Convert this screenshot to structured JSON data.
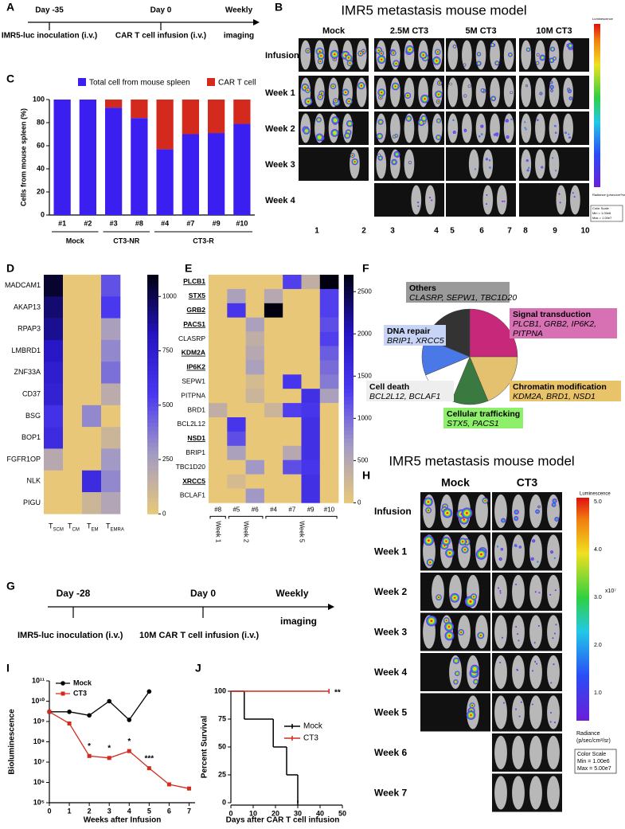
{
  "panel_labels": [
    "A",
    "B",
    "C",
    "D",
    "E",
    "F",
    "G",
    "H",
    "I",
    "J"
  ],
  "timeline_a": {
    "start": "Day -35",
    "mid": "Day 0",
    "end": "Weekly",
    "end2": "imaging",
    "start_event": "IMR5-luc inoculation (i.v.)",
    "mid_event": "CAR T cell infusion (i.v.)"
  },
  "timeline_g": {
    "start": "Day -28",
    "mid": "Day 0",
    "end": "Weekly",
    "end2": "imaging",
    "start_event": "IMR5-luc inoculation (i.v.)",
    "mid_event": "10M CAR T cell infusion (i.v.)"
  },
  "imaging_b": {
    "title": "IMR5 metastasis mouse model",
    "columns": [
      "Mock",
      "2.5M CT3",
      "5M CT3",
      "10M CT3"
    ],
    "rows": [
      "Infusion",
      "Week 1",
      "Week 2",
      "Week 3",
      "Week 4"
    ],
    "mouse_numbers": [
      "1",
      "2",
      "3",
      "4",
      "5",
      "6",
      "7",
      "8",
      "9",
      "10"
    ],
    "colorbar": [
      "Luminescence",
      "Radiance (p/sec/cm²/sr)",
      "Color Scale",
      "Min = 1.00e6",
      "Max = 1.00e7"
    ]
  },
  "imaging_h": {
    "title": "IMR5 metastasis mouse model",
    "columns": [
      "Mock",
      "CT3"
    ],
    "rows": [
      "Infusion",
      "Week 1",
      "Week 2",
      "Week 3",
      "Week 4",
      "Week 5",
      "Week 6",
      "Week 7"
    ],
    "colorbar_label": "Luminescence",
    "colorbar_ticks": [
      "5.0",
      "4.0",
      "3.0",
      "2.0",
      "1.0"
    ],
    "colorbar_unit": "x10⁷",
    "radiance": "Radiance",
    "radiance_unit": "(p/sec/cm²/sr)",
    "color_scale": [
      "Color Scale",
      "Min = 1.00e6",
      "Max = 5.00e7"
    ]
  },
  "chart_data": [
    {
      "type": "stacked-bar",
      "ylabel": "Cells from mouse spleen (%)",
      "categories": [
        "#1",
        "#2",
        "#3",
        "#8",
        "#4",
        "#7",
        "#9",
        "#10"
      ],
      "series": [
        {
          "name": "Total cell from mouse spleen",
          "color": "#3b1ff0",
          "values": [
            100,
            100,
            93,
            84,
            57,
            70,
            71,
            79
          ]
        },
        {
          "name": "CAR T cell",
          "color": "#d42a1e",
          "values": [
            0,
            0,
            7,
            16,
            43,
            30,
            29,
            21
          ]
        }
      ],
      "groups": [
        {
          "name": "Mock",
          "categories": [
            "#1",
            "#2"
          ]
        },
        {
          "name": "CT3-NR",
          "categories": [
            "#3",
            "#8"
          ]
        },
        {
          "name": "CT3-R",
          "categories": [
            "#4",
            "#7",
            "#9",
            "#10"
          ]
        }
      ],
      "ylim": [
        0,
        100
      ],
      "yticks": [
        0,
        20,
        40,
        60,
        80,
        100
      ]
    },
    {
      "type": "heatmap",
      "rows": [
        "MADCAM1",
        "AKAP13",
        "RPAP3",
        "LMBRD1",
        "ZNF33A",
        "CD37",
        "BSG",
        "BOP1",
        "FGFR1OP",
        "NLK",
        "PIGU"
      ],
      "columns": [
        {
          "base": "T",
          "subscript": "SCM"
        },
        {
          "base": "T",
          "subscript": "CM"
        },
        {
          "base": "T",
          "subscript": "EM"
        },
        {
          "base": "T",
          "subscript": "EMRA"
        }
      ],
      "values": [
        [
          1050,
          0,
          0,
          480
        ],
        [
          950,
          0,
          0,
          550
        ],
        [
          900,
          0,
          0,
          250
        ],
        [
          800,
          0,
          0,
          330
        ],
        [
          750,
          0,
          0,
          400
        ],
        [
          720,
          0,
          0,
          180
        ],
        [
          600,
          0,
          330,
          0
        ],
        [
          650,
          0,
          0,
          120
        ],
        [
          200,
          0,
          0,
          280
        ],
        [
          0,
          0,
          650,
          330
        ],
        [
          0,
          0,
          120,
          220
        ]
      ],
      "clim": [
        0,
        1100
      ],
      "cticks": [
        0,
        250,
        500,
        750,
        1000
      ],
      "colormap": [
        "#e8c878",
        "#a49cc4",
        "#4a38f0",
        "#2414c0",
        "#000010"
      ]
    },
    {
      "type": "heatmap",
      "rows": [
        "PLCB1",
        "STX5",
        "GRB2",
        "PACS1",
        "CLASRP",
        "KDM2A",
        "IP6K2",
        "SEPW1",
        "PITPNA",
        "BRD1",
        "BCL2L12",
        "NSD1",
        "BRIP1",
        "TBC1D20",
        "XRCC5",
        "BCLAF1"
      ],
      "highlighted": [
        true,
        true,
        true,
        true,
        false,
        true,
        true,
        false,
        false,
        false,
        false,
        true,
        false,
        false,
        true,
        false
      ],
      "columns": [
        "#8",
        "#5",
        "#6",
        "#4",
        "#7",
        "#9",
        "#10"
      ],
      "values": [
        [
          0,
          0,
          0,
          0,
          1300,
          400,
          2700
        ],
        [
          0,
          600,
          0,
          500,
          0,
          0,
          1300
        ],
        [
          0,
          1400,
          0,
          2700,
          0,
          0,
          1300
        ],
        [
          0,
          0,
          600,
          0,
          0,
          0,
          1200
        ],
        [
          0,
          0,
          400,
          0,
          0,
          0,
          1300
        ],
        [
          0,
          0,
          500,
          0,
          0,
          0,
          1100
        ],
        [
          0,
          0,
          600,
          0,
          0,
          0,
          1000
        ],
        [
          0,
          0,
          200,
          0,
          1400,
          0,
          900
        ],
        [
          0,
          0,
          300,
          0,
          0,
          1500,
          600
        ],
        [
          400,
          0,
          0,
          300,
          1300,
          1400,
          0
        ],
        [
          0,
          1400,
          0,
          0,
          0,
          1500,
          0
        ],
        [
          0,
          1200,
          0,
          0,
          0,
          1500,
          0
        ],
        [
          0,
          600,
          0,
          0,
          500,
          1500,
          0
        ],
        [
          0,
          0,
          700,
          0,
          1200,
          1400,
          0
        ],
        [
          0,
          200,
          0,
          0,
          0,
          1500,
          0
        ],
        [
          0,
          0,
          700,
          0,
          0,
          1500,
          0
        ]
      ],
      "groups": [
        {
          "name": "Week 1",
          "categories": [
            "#8"
          ]
        },
        {
          "name": "Week 2",
          "categories": [
            "#5",
            "#6"
          ]
        },
        {
          "name": "Week 5",
          "categories": [
            "#4",
            "#7",
            "#9",
            "#10"
          ]
        }
      ],
      "clim": [
        0,
        2700
      ],
      "cticks": [
        0,
        500,
        1000,
        1500,
        2000,
        2500
      ],
      "colormap": [
        "#e8c878",
        "#a49cc4",
        "#4a38f0",
        "#2414c0",
        "#000010"
      ]
    },
    {
      "type": "pie",
      "categories": [
        "Signal transduction",
        "Chromatin modification",
        "Cellular trafficking",
        "Cell death",
        "DNA repair",
        "Others"
      ],
      "details": [
        [
          "PLCB1, GRB2, IP6K2,",
          "PITPNA"
        ],
        [
          "KDM2A, BRD1, NSD1"
        ],
        [
          "STX5, PACS1"
        ],
        [
          "BCL2L12, BCLAF1"
        ],
        [
          "BRIP1, XRCC5"
        ],
        [
          "CLASRP, SEPW1, TBC1D20"
        ]
      ],
      "values": [
        4,
        3,
        2,
        2,
        2,
        3
      ],
      "colors": [
        "#c8287a",
        "#e3c16f",
        "#3a7a40",
        "#ffffff",
        "#4a78e6",
        "#333333"
      ],
      "label_colors": [
        "#d870b4",
        "#e8c36a",
        "#8ef06a",
        "#eeeeee",
        "#c8d4f5",
        "#9a9a9a"
      ]
    },
    {
      "type": "line",
      "log_y": true,
      "xlabel": "Weeks after Infusion",
      "ylabel": "Bioluminescence",
      "series": [
        {
          "name": "Mock",
          "color": "#000000",
          "marker": "circle",
          "x": [
            0,
            1,
            2,
            3,
            4,
            5
          ],
          "values": [
            3000000000,
            3000000000,
            2000000000,
            10000000000,
            1200000000,
            30000000000
          ]
        },
        {
          "name": "CT3",
          "color": "#d42a1e",
          "marker": "square",
          "x": [
            0,
            1,
            2,
            3,
            4,
            5,
            6,
            7
          ],
          "values": [
            3000000000,
            800000000,
            20000000,
            16000000,
            35000000,
            5000000,
            800000,
            500000
          ]
        }
      ],
      "annotations": [
        {
          "text": "*",
          "x": 2
        },
        {
          "text": "*",
          "x": 3
        },
        {
          "text": "*",
          "x": 4
        },
        {
          "text": "***",
          "x": 5
        }
      ],
      "xlim": [
        0,
        7.3
      ],
      "xticks": [
        0,
        1,
        2,
        3,
        4,
        5,
        6,
        7
      ],
      "ylim": [
        100000,
        100000000000
      ],
      "yticks": [
        {
          "value": 100000,
          "label": "10⁵"
        },
        {
          "value": 1000000,
          "label": "10⁶"
        },
        {
          "value": 10000000,
          "label": "10⁷"
        },
        {
          "value": 100000000,
          "label": "10⁸"
        },
        {
          "value": 1000000000,
          "label": "10⁹"
        },
        {
          "value": 10000000000,
          "label": "10¹⁰"
        },
        {
          "value": 100000000000,
          "label": "10¹¹"
        }
      ]
    },
    {
      "type": "step",
      "xlabel": "Days after CAR T cell infusion",
      "ylabel": "Percent Survival",
      "series": [
        {
          "name": "Mock",
          "color": "#000000",
          "x": [
            0,
            6,
            19,
            25,
            30
          ],
          "values": [
            100,
            75,
            50,
            25,
            0
          ]
        },
        {
          "name": "CT3",
          "color": "#d42a1e",
          "x": [
            0,
            44
          ],
          "values": [
            100,
            100
          ]
        }
      ],
      "annotation": "**",
      "xlim": [
        0,
        50
      ],
      "xticks": [
        0,
        10,
        20,
        30,
        40,
        50
      ],
      "ylim": [
        0,
        100
      ],
      "yticks": [
        0,
        25,
        50,
        75,
        100
      ]
    }
  ]
}
